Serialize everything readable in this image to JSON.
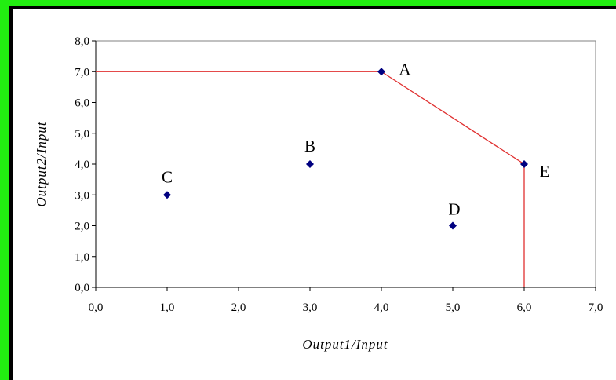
{
  "colors": {
    "frame_green": "#22ee11",
    "frontier_line": "#e03030",
    "marker": "#000080",
    "axis": "#808080"
  },
  "chart_data": {
    "type": "scatter",
    "title": "",
    "xlabel": "Output1/Input",
    "ylabel": "Output2/Input",
    "xlim": [
      0,
      7
    ],
    "ylim": [
      0,
      8
    ],
    "x_ticks": [
      0,
      1,
      2,
      3,
      4,
      5,
      6,
      7
    ],
    "y_ticks": [
      0,
      1,
      2,
      3,
      4,
      5,
      6,
      7,
      8
    ],
    "x_tick_labels": [
      "0,0",
      "1,0",
      "2,0",
      "3,0",
      "4,0",
      "5,0",
      "6,0",
      "7,0"
    ],
    "y_tick_labels": [
      "0,0",
      "1,0",
      "2,0",
      "3,0",
      "4,0",
      "5,0",
      "6,0",
      "7,0",
      "8,0"
    ],
    "grid": false,
    "legend": "none",
    "points": [
      {
        "label": "A",
        "x": 4,
        "y": 7
      },
      {
        "label": "B",
        "x": 3,
        "y": 4
      },
      {
        "label": "C",
        "x": 1,
        "y": 3
      },
      {
        "label": "D",
        "x": 5,
        "y": 2
      },
      {
        "label": "E",
        "x": 6,
        "y": 4
      }
    ],
    "frontier": [
      {
        "x": 0,
        "y": 7
      },
      {
        "x": 4,
        "y": 7
      },
      {
        "x": 6,
        "y": 4
      },
      {
        "x": 6,
        "y": 0
      }
    ]
  }
}
